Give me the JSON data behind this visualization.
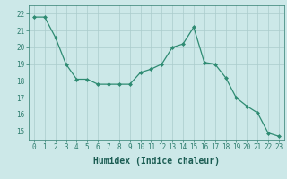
{
  "x": [
    0,
    1,
    2,
    3,
    4,
    5,
    6,
    7,
    8,
    9,
    10,
    11,
    12,
    13,
    14,
    15,
    16,
    17,
    18,
    19,
    20,
    21,
    22,
    23
  ],
  "y": [
    21.8,
    21.8,
    20.6,
    19.0,
    18.1,
    18.1,
    17.8,
    17.8,
    17.8,
    17.8,
    18.5,
    18.7,
    19.0,
    20.0,
    20.2,
    21.2,
    19.1,
    19.0,
    18.2,
    17.0,
    16.5,
    16.1,
    14.9,
    14.7
  ],
  "line_color": "#2e8b72",
  "marker": "D",
  "marker_size": 2.0,
  "bg_color": "#cce8e8",
  "grid_color": "#aacccc",
  "xlabel": "Humidex (Indice chaleur)",
  "ylim": [
    14.5,
    22.5
  ],
  "yticks": [
    15,
    16,
    17,
    18,
    19,
    20,
    21,
    22
  ],
  "xticks": [
    0,
    1,
    2,
    3,
    4,
    5,
    6,
    7,
    8,
    9,
    10,
    11,
    12,
    13,
    14,
    15,
    16,
    17,
    18,
    19,
    20,
    21,
    22,
    23
  ],
  "tick_color": "#2e7d6e",
  "label_color": "#1a5c52",
  "xlabel_fontsize": 7,
  "tick_fontsize": 5.5
}
